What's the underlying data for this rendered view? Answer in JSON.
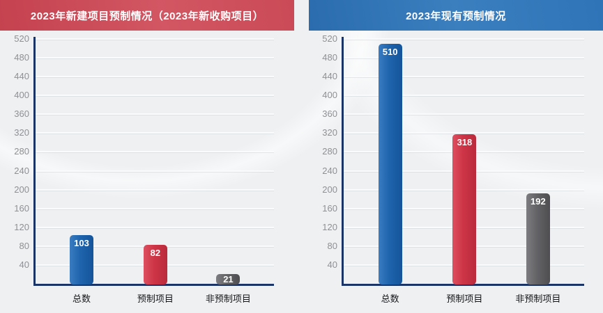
{
  "chart_data": [
    {
      "type": "bar",
      "title": "2023年新建项目预制情况（2023年新收购项目）",
      "title_bg": "#ce4e5b",
      "categories": [
        "总数",
        "预制项目",
        "非预制项目"
      ],
      "values": [
        103,
        82,
        21
      ],
      "bar_colors": [
        "#1e64ad",
        "#cd3546",
        "#636366"
      ],
      "bar_colors_light": [
        "#3a7cc1",
        "#de4f5f",
        "#7d7d81"
      ],
      "bar_colors_dark": [
        "#15549a",
        "#b92a3b",
        "#4e4e51"
      ],
      "value_label_color": "#ffffff",
      "xlabel": "",
      "ylabel": "",
      "ylim": [
        0,
        520
      ],
      "yticks": [
        40,
        80,
        120,
        160,
        200,
        240,
        280,
        320,
        360,
        400,
        440,
        480,
        520
      ],
      "grid": true,
      "legend": "none",
      "axis_color": "#1b3468"
    },
    {
      "type": "bar",
      "title": "2023年现有预制情况",
      "title_bg": "#2e74b7",
      "categories": [
        "总数",
        "预制项目",
        "非预制项目"
      ],
      "values": [
        510,
        318,
        192
      ],
      "bar_colors": [
        "#1e64ad",
        "#cd3546",
        "#636366"
      ],
      "bar_colors_light": [
        "#3a7cc1",
        "#de4f5f",
        "#7d7d81"
      ],
      "bar_colors_dark": [
        "#15549a",
        "#b92a3b",
        "#4e4e51"
      ],
      "value_label_color": "#ffffff",
      "xlabel": "",
      "ylabel": "",
      "ylim": [
        0,
        520
      ],
      "yticks": [
        40,
        80,
        120,
        160,
        200,
        240,
        280,
        320,
        360,
        400,
        440,
        480,
        520
      ],
      "grid": true,
      "legend": "none",
      "axis_color": "#1b3468"
    }
  ]
}
